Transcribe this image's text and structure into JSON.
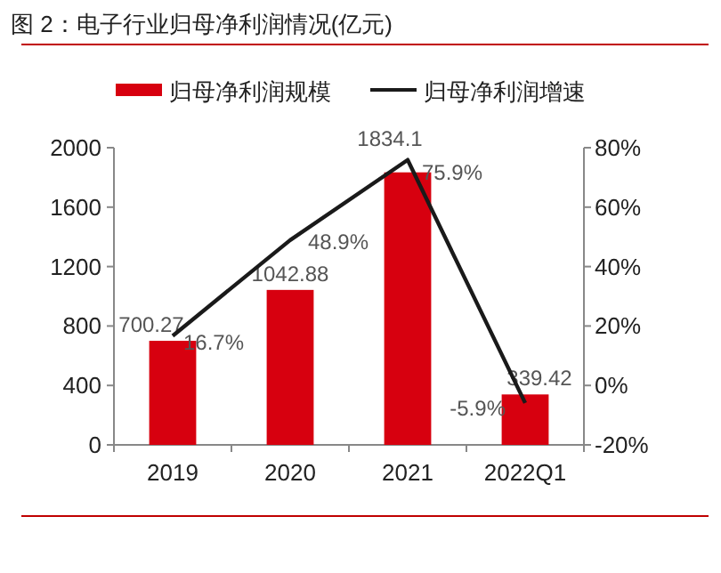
{
  "chart_data": {
    "type": "bar",
    "title": "图 2：电子行业归母净利润情况(亿元)",
    "categories": [
      "2019",
      "2020",
      "2021",
      "2022Q1"
    ],
    "series": [
      {
        "name": "归母净利润规模",
        "color": "#d7000f",
        "values": [
          700.27,
          1042.88,
          1834.1,
          339.42
        ],
        "value_labels": [
          "700.27",
          "1042.88",
          "1834.1",
          "339.42"
        ]
      },
      {
        "name": "归母净利润增速",
        "type": "line",
        "axis": "y2",
        "color": "#1a1a1a",
        "values": [
          16.7,
          48.9,
          75.9,
          -5.9
        ],
        "value_labels": [
          "16.7%",
          "48.9%",
          "75.9%",
          "-5.9%"
        ]
      }
    ],
    "ylim": [
      0,
      2000
    ],
    "yticks": [
      0,
      400,
      800,
      1200,
      1600,
      2000
    ],
    "y2lim": [
      -20,
      80
    ],
    "y2ticks": [
      {
        "value": -20,
        "label": "-20%"
      },
      {
        "value": 0,
        "label": "0%"
      },
      {
        "value": 20,
        "label": "20%"
      },
      {
        "value": 40,
        "label": "40%"
      },
      {
        "value": 60,
        "label": "60%"
      },
      {
        "value": 80,
        "label": "80%"
      }
    ],
    "legend": "top",
    "grid": false,
    "marker": "none",
    "line_style": "solid"
  }
}
